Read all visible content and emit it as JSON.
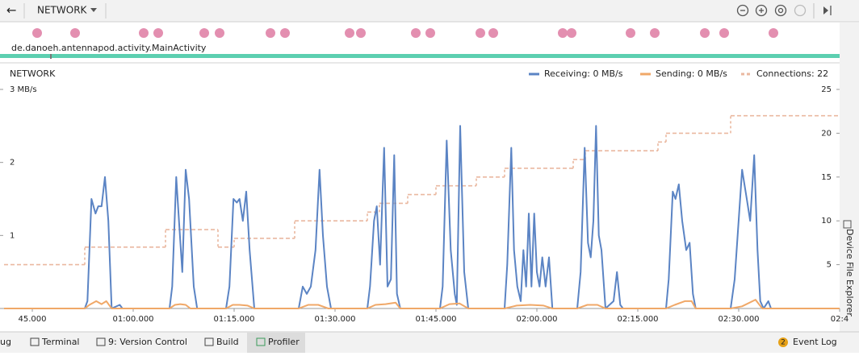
{
  "toolbar": {
    "back": "←",
    "selector": "NETWORK"
  },
  "process": "de.danoeh.antennapod.activity.MainActivity",
  "side_tab": "Device File Explorer",
  "bottom_tabs": [
    "ug",
    "Terminal",
    "9: Version Control",
    "Build",
    "Profiler"
  ],
  "event_log": {
    "badge": 2,
    "label": "Event Log"
  },
  "chart_data": {
    "type": "line",
    "title": "NETWORK",
    "xlim": [
      40.8,
      165
    ],
    "xticks": [
      {
        "value": 45,
        "label": "45.000"
      },
      {
        "value": 60,
        "label": "01:00.000"
      },
      {
        "value": 75,
        "label": "01:15.000"
      },
      {
        "value": 90,
        "label": "01:30.000"
      },
      {
        "value": 105,
        "label": "01:45.000"
      },
      {
        "value": 120,
        "label": "02:00.000"
      },
      {
        "value": 135,
        "label": "02:15.000"
      },
      {
        "value": 150,
        "label": "02:30.000"
      },
      {
        "value": 165,
        "label": "02:4"
      }
    ],
    "ylim": [
      0,
      3
    ],
    "yticks": [
      {
        "value": 3,
        "label": "3 MB/s"
      },
      2,
      1
    ],
    "y2lim": [
      0,
      25
    ],
    "y2ticks": [
      5,
      10,
      15,
      20,
      25
    ],
    "series": [
      {
        "name": "Receiving: 0 MB/s",
        "color": "#5b84c4",
        "x": [
          40.8,
          52.8,
          53.2,
          53.8,
          54.4,
          54.8,
          55.3,
          55.8,
          56.3,
          56.8,
          58,
          58.4,
          65.4,
          65.8,
          66.4,
          66.8,
          67.3,
          67.8,
          68.3,
          69,
          69.5,
          73.8,
          74.3,
          74.9,
          75.4,
          75.8,
          76.3,
          76.8,
          77.3,
          78,
          84.6,
          85.2,
          85.8,
          86.4,
          87.1,
          87.7,
          88.2,
          88.8,
          89.4,
          94.8,
          95.2,
          95.8,
          96.2,
          96.7,
          97.3,
          97.8,
          98.3,
          98.8,
          99.2,
          99.7,
          105.6,
          106,
          106.6,
          107.2,
          107.8,
          108.1,
          108.6,
          109.2,
          109.8,
          115.2,
          115.6,
          116.2,
          116.6,
          117.1,
          117.6,
          118,
          118.4,
          118.8,
          119.2,
          119.6,
          120,
          120.4,
          120.8,
          121.3,
          121.8,
          122.3,
          126,
          126.5,
          127.1,
          127.6,
          128,
          128.4,
          128.8,
          129.2,
          129.6,
          130.2,
          131.4,
          131.9,
          132.4,
          132.8,
          139.2,
          139.6,
          140.2,
          140.6,
          141.1,
          141.6,
          142.2,
          142.7,
          143.2,
          143.6,
          148.8,
          149.4,
          150.5,
          151.2,
          151.7,
          152.3,
          152.8,
          153.2,
          153.7,
          154.4,
          154.8,
          165
        ],
        "values": [
          0,
          0,
          0.1,
          1.5,
          1.3,
          1.4,
          1.4,
          1.8,
          1.2,
          0,
          0.05,
          0,
          0,
          0.3,
          1.8,
          1.2,
          0.5,
          1.9,
          1.5,
          0.3,
          0,
          0,
          0.3,
          1.5,
          1.45,
          1.5,
          1.2,
          1.6,
          0.8,
          0,
          0,
          0.3,
          0.2,
          0.3,
          0.8,
          1.9,
          1.0,
          0.3,
          0,
          0,
          0.3,
          1.2,
          1.4,
          0.6,
          2.2,
          0.3,
          0.4,
          2.1,
          0.2,
          0,
          0,
          0.3,
          2.3,
          0.8,
          0.2,
          0.05,
          2.5,
          0.5,
          0,
          0,
          0.6,
          2.2,
          0.8,
          0.3,
          0.1,
          0.8,
          0.3,
          1.3,
          0.3,
          1.3,
          0.5,
          0.3,
          0.7,
          0.3,
          0.7,
          0,
          0,
          0.5,
          2.2,
          0.9,
          0.7,
          1.2,
          2.5,
          1.0,
          0.8,
          0,
          0.1,
          0.5,
          0.05,
          0,
          0,
          0.4,
          1.6,
          1.5,
          1.7,
          1.2,
          0.8,
          0.9,
          0.2,
          0,
          0,
          0.4,
          1.9,
          1.5,
          1.2,
          2.1,
          0.8,
          0.1,
          0,
          0.1,
          0,
          0
        ]
      },
      {
        "name": "Sending: 0 MB/s",
        "color": "#f0a868",
        "x": [
          40.8,
          52.8,
          53.5,
          54.5,
          55.3,
          56,
          56.8,
          65.4,
          66.2,
          67,
          67.8,
          68.5,
          73.8,
          74.8,
          75.8,
          77,
          78,
          84.6,
          86,
          87.5,
          89,
          94.8,
          96,
          97.5,
          99,
          99.7,
          105.6,
          107,
          108.5,
          109.8,
          115.2,
          117,
          119,
          121,
          122.3,
          126,
          127.5,
          129,
          130.2,
          139.2,
          140.5,
          142,
          143,
          143.6,
          148.8,
          150.5,
          152.5,
          153.5,
          165
        ],
        "values": [
          0,
          0,
          0.05,
          0.1,
          0.06,
          0.1,
          0,
          0,
          0.05,
          0.06,
          0.05,
          0,
          0,
          0.05,
          0.05,
          0.04,
          0,
          0,
          0.05,
          0.05,
          0,
          0,
          0.05,
          0.06,
          0.08,
          0,
          0,
          0.06,
          0.07,
          0,
          0,
          0.04,
          0.05,
          0.04,
          0,
          0,
          0.05,
          0.05,
          0,
          0,
          0.05,
          0.1,
          0.1,
          0,
          0,
          0.03,
          0.12,
          0,
          0
        ]
      },
      {
        "name": "Connections: 22",
        "color": "#eab8a0",
        "axis": "y2",
        "step": true,
        "dashed": true,
        "x": [
          40.8,
          52.8,
          64.8,
          72.6,
          75,
          84,
          94.8,
          96.6,
          100.8,
          105,
          111,
          115.2,
          125.4,
          127.2,
          138,
          139.2,
          148.8
        ],
        "values": [
          5,
          7,
          9,
          7,
          8,
          10,
          11,
          12,
          13,
          14,
          15,
          16,
          17,
          18,
          19,
          20,
          22
        ]
      }
    ]
  }
}
